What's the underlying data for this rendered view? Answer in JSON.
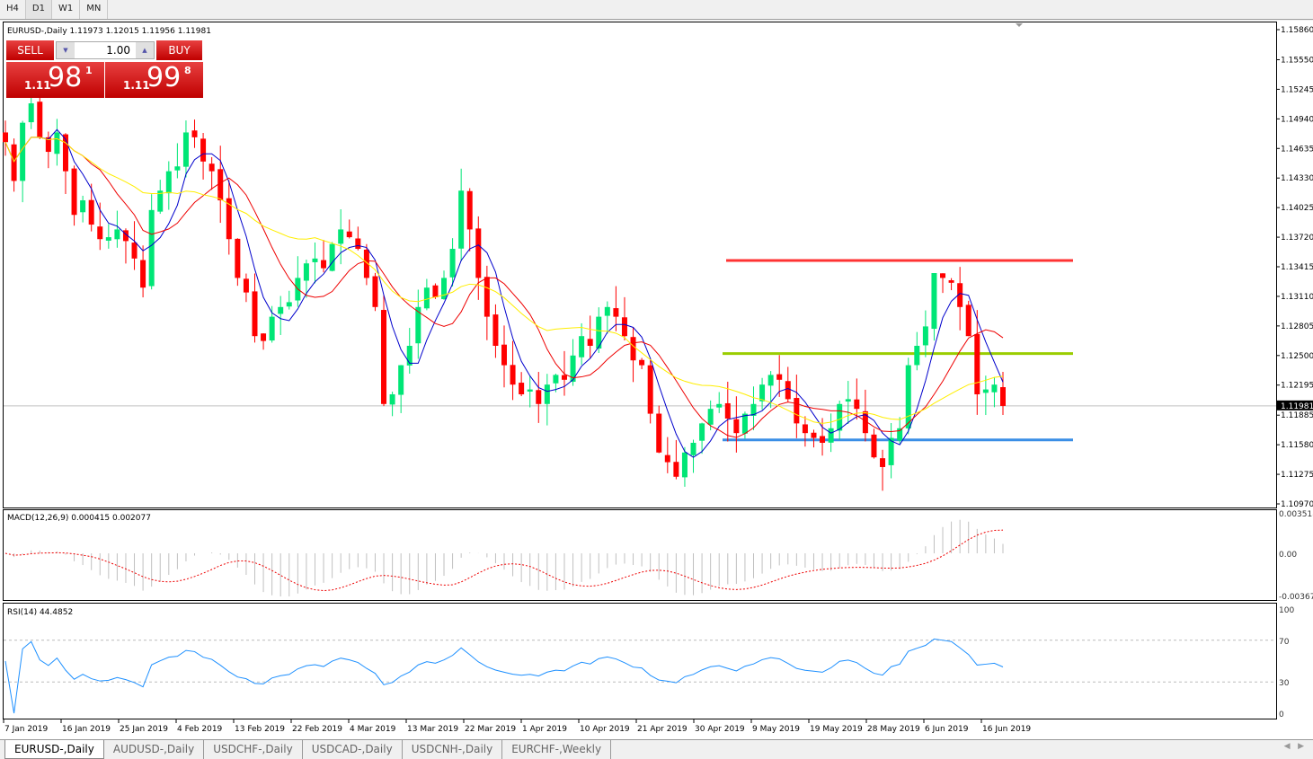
{
  "timeframes": [
    "H4",
    "D1",
    "W1",
    "MN"
  ],
  "active_timeframe": "D1",
  "chart": {
    "symbol_line": "EURUSD-,Daily  1.11973 1.12015 1.11956 1.11981",
    "current_price": "1.11981",
    "price_axis": [
      "1.15860",
      "1.15550",
      "1.15245",
      "1.14940",
      "1.14635",
      "1.14330",
      "1.14025",
      "1.13720",
      "1.13415",
      "1.13110",
      "1.12805",
      "1.12500",
      "1.12195",
      "1.11885",
      "1.11580",
      "1.11275",
      "1.10970"
    ],
    "date_axis": [
      "7 Jan 2019",
      "16 Jan 2019",
      "25 Jan 2019",
      "4 Feb 2019",
      "13 Feb 2019",
      "22 Feb 2019",
      "4 Mar 2019",
      "13 Mar 2019",
      "22 Mar 2019",
      "1 Apr 2019",
      "10 Apr 2019",
      "21 Apr 2019",
      "30 Apr 2019",
      "9 May 2019",
      "19 May 2019",
      "28 May 2019",
      "6 Jun 2019",
      "16 Jun 2019"
    ],
    "hlines": [
      {
        "price": 1.1348,
        "color": "#ff3333"
      },
      {
        "price": 1.1252,
        "color": "#9acd00"
      },
      {
        "price": 1.1163,
        "color": "#3a8ee6"
      }
    ],
    "colors": {
      "bull": "#00e676",
      "bear": "#ff0000",
      "ma_fast": "#0000cc",
      "ma_mid": "#ee0000",
      "ma_slow": "#ffee00"
    }
  },
  "trade_panel": {
    "sell_label": "SELL",
    "buy_label": "BUY",
    "lot": "1.00",
    "bid_small": "1.11",
    "bid_big": "98",
    "bid_sup": "1",
    "ask_small": "1.11",
    "ask_big": "99",
    "ask_sup": "8"
  },
  "macd": {
    "label": "MACD(12,26,9) 0.000415 0.002077",
    "axis": [
      "0.003518",
      "0.00",
      "-0.00367"
    ]
  },
  "rsi": {
    "label": "RSI(14) 44.4852",
    "axis": [
      "100",
      "70",
      "30",
      "0"
    ]
  },
  "tabs": [
    "EURUSD-,Daily",
    "AUDUSD-,Daily",
    "USDCHF-,Daily",
    "USDCAD-,Daily",
    "USDCNH-,Daily",
    "EURCHF-,Weekly"
  ],
  "chart_data": {
    "type": "candlestick",
    "closes": [
      1.147,
      1.143,
      1.149,
      1.151,
      1.1475,
      1.146,
      1.148,
      1.144,
      1.1395,
      1.141,
      1.1385,
      1.137,
      1.1372,
      1.138,
      1.1368,
      1.135,
      1.132,
      1.14,
      1.142,
      1.144,
      1.1445,
      1.148,
      1.1475,
      1.145,
      1.144,
      1.141,
      1.137,
      1.133,
      1.1315,
      1.127,
      1.1265,
      1.129,
      1.13,
      1.1305,
      1.133,
      1.1345,
      1.135,
      1.134,
      1.1365,
      1.138,
      1.1372,
      1.136,
      1.133,
      1.13,
      1.12,
      1.121,
      1.124,
      1.126,
      1.13,
      1.132,
      1.131,
      1.133,
      1.136,
      1.142,
      1.138,
      1.133,
      1.129,
      1.126,
      1.124,
      1.122,
      1.121,
      1.1215,
      1.12,
      1.122,
      1.123,
      1.1225,
      1.125,
      1.127,
      1.126,
      1.129,
      1.13,
      1.129,
      1.127,
      1.1245,
      1.124,
      1.119,
      1.115,
      1.114,
      1.1125,
      1.115,
      1.116,
      1.118,
      1.1195,
      1.12,
      1.1185,
      1.117,
      1.119,
      1.12,
      1.122,
      1.123,
      1.1225,
      1.1205,
      1.118,
      1.117,
      1.1165,
      1.116,
      1.1175,
      1.12,
      1.1205,
      1.1195,
      1.117,
      1.1145,
      1.1135,
      1.1165,
      1.1175,
      1.124,
      1.126,
      1.128,
      1.1335,
      1.133,
      1.1325,
      1.13,
      1.127,
      1.121,
      1.1215,
      1.122,
      1.1198
    ],
    "ylim": [
      1.1097,
      1.1586
    ]
  }
}
